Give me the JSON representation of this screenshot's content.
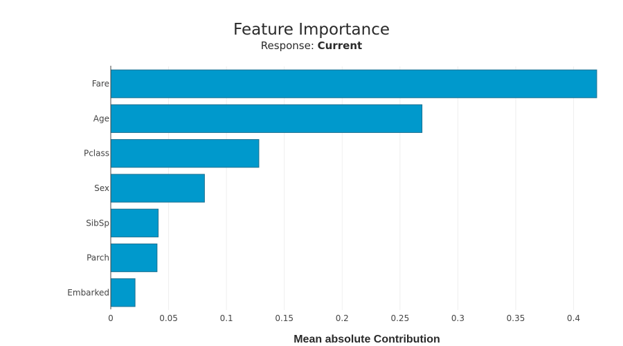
{
  "chart_data": {
    "type": "bar",
    "orientation": "horizontal",
    "title": "Feature Importance",
    "subtitle_prefix": "Response: ",
    "subtitle_value": "Current",
    "xlabel": "Mean absolute Contribution",
    "ylabel": "",
    "categories": [
      "Fare",
      "Age",
      "Pclass",
      "Sex",
      "SibSp",
      "Parch",
      "Embarked"
    ],
    "values": [
      0.42,
      0.269,
      0.128,
      0.081,
      0.041,
      0.04,
      0.021
    ],
    "xlim": [
      0,
      0.42
    ],
    "xticks": [
      0,
      0.05,
      0.1,
      0.15,
      0.2,
      0.25,
      0.3,
      0.35,
      0.4
    ],
    "xtick_labels": [
      "0",
      "0.05",
      "0.1",
      "0.15",
      "0.2",
      "0.25",
      "0.3",
      "0.35",
      "0.4"
    ],
    "grid": "vertical",
    "legend": "none",
    "bar_color": "#0099cc",
    "bar_edge_color": "#1a6f8f"
  }
}
